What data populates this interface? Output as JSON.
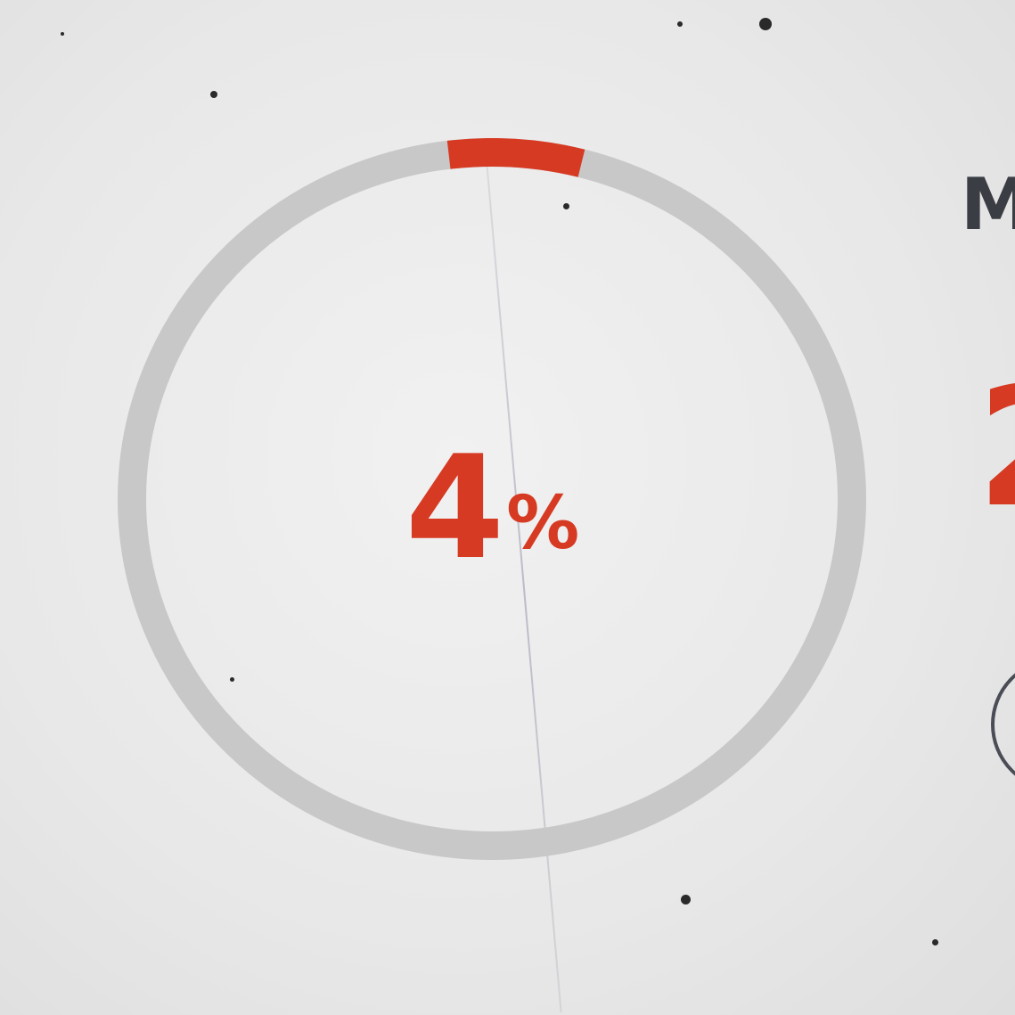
{
  "progress": {
    "value": 4,
    "value_text": "4",
    "unit": "%",
    "track_color": "#c8c8c8",
    "fill_color": "#d63a23"
  },
  "side_panel": {
    "title_fragment": "M",
    "value_fragment": "2"
  }
}
